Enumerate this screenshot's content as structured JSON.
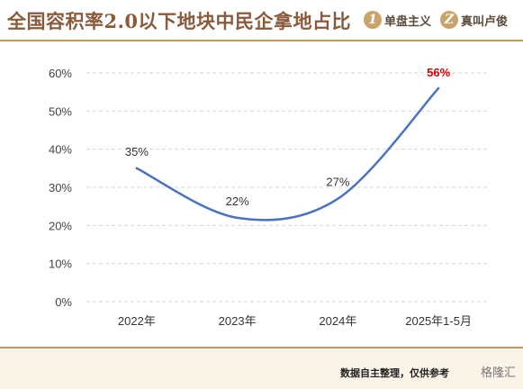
{
  "header": {
    "title": "全国容积率2.0以下地块中民企拿地占比",
    "brands": [
      {
        "logo": "1",
        "name": "单盘主义"
      },
      {
        "logo": "Z",
        "name": "真叫卢俊"
      }
    ]
  },
  "footer": {
    "note": "数据自主整理，仅供参考",
    "watermark": "格隆汇"
  },
  "colors": {
    "line": "#4a72c0",
    "highlight": "#e00000",
    "title": "#8a5a3a",
    "rule": "#c49763"
  },
  "chart_data": {
    "type": "line",
    "categories": [
      "2022年",
      "2023年",
      "2024年",
      "2025年1-5月"
    ],
    "values": [
      35,
      22,
      27,
      56
    ],
    "data_labels": [
      "35%",
      "22%",
      "27%",
      "56%"
    ],
    "highlight_index": 3,
    "y_ticks": [
      "0%",
      "10%",
      "20%",
      "30%",
      "40%",
      "50%",
      "60%"
    ],
    "ylim": [
      0,
      60
    ],
    "smooth": true,
    "grid": "horizontal-dashed",
    "title": "",
    "xlabel": "",
    "ylabel": ""
  }
}
